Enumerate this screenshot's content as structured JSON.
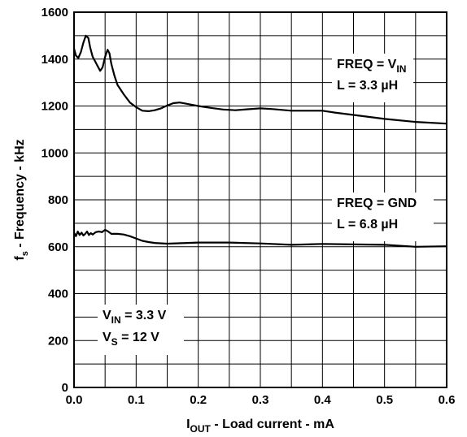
{
  "chart_data": {
    "type": "line",
    "xlabel": {
      "main": "I",
      "sub": "OUT",
      "rest": " - Load current - mA"
    },
    "ylabel": {
      "main": "f",
      "sub": "s",
      "rest": " - Frequency - kHz"
    },
    "xlim": [
      0,
      0.6
    ],
    "ylim": [
      0,
      1600
    ],
    "xticks": [
      "0.0",
      "0.1",
      "0.2",
      "0.3",
      "0.4",
      "0.5",
      "0.6"
    ],
    "yticks": [
      "0",
      "200",
      "400",
      "600",
      "800",
      "1000",
      "1200",
      "1400",
      "1600"
    ],
    "x_gridlines": [
      0.05,
      0.1,
      0.15,
      0.2,
      0.25,
      0.3,
      0.35,
      0.4,
      0.45,
      0.5,
      0.55
    ],
    "y_gridlines": [
      100,
      200,
      300,
      400,
      500,
      600,
      700,
      800,
      900,
      1000,
      1100,
      1200,
      1300,
      1400,
      1500
    ],
    "grid": true,
    "series": [
      {
        "label_lines": [
          {
            "text": "FREQ = V",
            "sub": "IN"
          },
          {
            "text": "L = 3.3 µH",
            "sub": ""
          }
        ],
        "points": [
          [
            0.0,
            1445
          ],
          [
            0.003,
            1415
          ],
          [
            0.007,
            1405
          ],
          [
            0.011,
            1430
          ],
          [
            0.015,
            1470
          ],
          [
            0.019,
            1500
          ],
          [
            0.023,
            1490
          ],
          [
            0.026,
            1450
          ],
          [
            0.03,
            1410
          ],
          [
            0.034,
            1390
          ],
          [
            0.038,
            1370
          ],
          [
            0.042,
            1350
          ],
          [
            0.046,
            1365
          ],
          [
            0.05,
            1410
          ],
          [
            0.054,
            1440
          ],
          [
            0.057,
            1425
          ],
          [
            0.06,
            1380
          ],
          [
            0.065,
            1330
          ],
          [
            0.07,
            1290
          ],
          [
            0.08,
            1250
          ],
          [
            0.09,
            1215
          ],
          [
            0.1,
            1195
          ],
          [
            0.11,
            1180
          ],
          [
            0.12,
            1178
          ],
          [
            0.13,
            1182
          ],
          [
            0.14,
            1190
          ],
          [
            0.15,
            1202
          ],
          [
            0.16,
            1212
          ],
          [
            0.17,
            1215
          ],
          [
            0.18,
            1210
          ],
          [
            0.2,
            1200
          ],
          [
            0.22,
            1192
          ],
          [
            0.24,
            1185
          ],
          [
            0.26,
            1182
          ],
          [
            0.28,
            1186
          ],
          [
            0.3,
            1190
          ],
          [
            0.32,
            1187
          ],
          [
            0.35,
            1180
          ],
          [
            0.4,
            1180
          ],
          [
            0.42,
            1172
          ],
          [
            0.45,
            1162
          ],
          [
            0.5,
            1145
          ],
          [
            0.55,
            1132
          ],
          [
            0.6,
            1125
          ]
        ]
      },
      {
        "label_lines": [
          {
            "text": "FREQ = GND",
            "sub": ""
          },
          {
            "text": "L = 6.8 µH",
            "sub": ""
          }
        ],
        "points": [
          [
            0.0,
            660
          ],
          [
            0.003,
            645
          ],
          [
            0.006,
            665
          ],
          [
            0.009,
            650
          ],
          [
            0.012,
            660
          ],
          [
            0.015,
            648
          ],
          [
            0.018,
            655
          ],
          [
            0.021,
            665
          ],
          [
            0.024,
            650
          ],
          [
            0.027,
            658
          ],
          [
            0.03,
            652
          ],
          [
            0.035,
            662
          ],
          [
            0.04,
            665
          ],
          [
            0.045,
            662
          ],
          [
            0.05,
            672
          ],
          [
            0.055,
            665
          ],
          [
            0.06,
            655
          ],
          [
            0.07,
            655
          ],
          [
            0.08,
            652
          ],
          [
            0.09,
            645
          ],
          [
            0.1,
            635
          ],
          [
            0.11,
            625
          ],
          [
            0.12,
            620
          ],
          [
            0.13,
            616
          ],
          [
            0.15,
            613
          ],
          [
            0.2,
            618
          ],
          [
            0.25,
            618
          ],
          [
            0.3,
            614
          ],
          [
            0.35,
            608
          ],
          [
            0.4,
            612
          ],
          [
            0.45,
            610
          ],
          [
            0.5,
            608
          ],
          [
            0.55,
            600
          ],
          [
            0.6,
            602
          ]
        ]
      }
    ],
    "annotations": [
      {
        "lines": [
          {
            "text": "V",
            "sub": "IN",
            "rest": " = 3.3 V"
          },
          {
            "text": "V",
            "sub": "S",
            "rest": " = 12 V"
          }
        ]
      }
    ]
  }
}
